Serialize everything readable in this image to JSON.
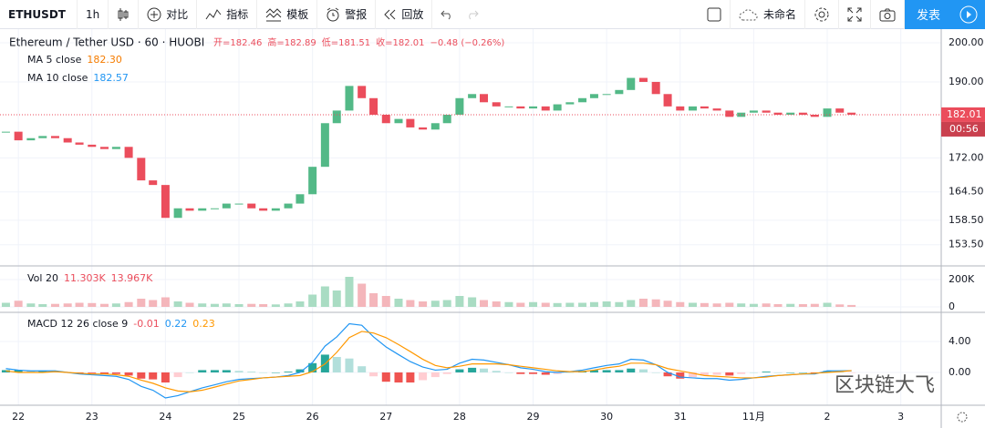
{
  "toolbar": {
    "symbol": "ETHUSDT",
    "interval": "1h",
    "buttons": [
      "对比",
      "指标",
      "模板",
      "警报",
      "回放"
    ],
    "layout_name": "未命名",
    "publish": "发表"
  },
  "chart": {
    "legend": {
      "title": "Ethereum / Tether USD · 60 · HUOBI",
      "ohlc": [
        "开=182.46",
        "高=182.89",
        "低=181.51",
        "收=182.01",
        "−0.48 (−0.26%)"
      ],
      "ma": [
        {
          "name": "MA 5 close",
          "value": "182.30",
          "color": "#f57c00"
        },
        {
          "name": "MA 10 close",
          "value": "182.57",
          "color": "#2196f3"
        }
      ]
    },
    "xlim": [
      21.75,
      34.55
    ],
    "xticks": [
      22,
      23,
      24,
      25,
      26,
      27,
      28,
      29,
      30,
      31,
      {
        "value": 32,
        "label": "11月"
      },
      {
        "value": 33,
        "label": "2"
      },
      {
        "value": 34,
        "label": "3"
      }
    ],
    "x": [
      21.83,
      22,
      22.17,
      22.33,
      22.5,
      22.67,
      22.83,
      23,
      23.17,
      23.33,
      23.5,
      23.67,
      23.83,
      24,
      24.17,
      24.33,
      24.5,
      24.67,
      24.83,
      25,
      25.17,
      25.33,
      25.5,
      25.67,
      25.83,
      26,
      26.17,
      26.33,
      26.5,
      26.67,
      26.83,
      27,
      27.17,
      27.33,
      27.5,
      27.67,
      27.83,
      28,
      28.17,
      28.33,
      28.5,
      28.67,
      28.83,
      29,
      29.17,
      29.33,
      29.5,
      29.67,
      29.83,
      30,
      30.17,
      30.33,
      30.5,
      30.67,
      30.83,
      31,
      31.17,
      31.33,
      31.5,
      31.67,
      31.83,
      32,
      32.17,
      32.33,
      32.5,
      32.67,
      32.83,
      33,
      33.17,
      33.33
    ],
    "price": {
      "type": "candlestick",
      "log": true,
      "ylim": [
        149.3,
        203.6
      ],
      "yticks": [
        {
          "value": 200,
          "label": "200.00"
        },
        {
          "value": 190,
          "label": "190.00"
        },
        {
          "value": 172,
          "label": "172.00"
        },
        {
          "value": 164.5,
          "label": "164.50"
        },
        {
          "value": 158.5,
          "label": "158.50"
        },
        {
          "value": 153.5,
          "label": "153.50"
        }
      ],
      "up_color": "#53b987",
      "down_color": "#eb4d5c",
      "close": [
        178,
        176,
        176.5,
        177,
        176.5,
        175.5,
        175,
        174.5,
        174,
        174.5,
        172,
        167,
        166,
        159,
        161,
        160.5,
        161,
        161,
        162,
        162,
        161,
        160.5,
        161,
        162,
        164,
        170,
        180,
        183,
        189,
        186,
        182,
        180,
        181,
        179,
        178.5,
        180,
        182,
        186,
        187,
        185,
        184,
        184,
        183.5,
        184,
        183,
        184.5,
        185,
        186,
        187,
        187,
        188,
        191,
        190,
        187,
        184,
        183,
        184,
        183.5,
        183,
        181.5,
        182.5,
        183,
        182.5,
        182,
        182.5,
        182,
        181.5,
        183.5,
        182.5,
        182.01
      ],
      "last": 182.01,
      "countdown": "00:56"
    },
    "volume": {
      "type": "bar",
      "legend": [
        "Vol 20",
        "11.303K",
        "13.967K"
      ],
      "ylim": [
        -40000,
        293333
      ],
      "yticks": [
        {
          "value": 200000,
          "label": "200K"
        },
        0
      ],
      "values": [
        30000,
        45000,
        25000,
        20000,
        22000,
        25000,
        30000,
        28000,
        22000,
        25000,
        35000,
        60000,
        50000,
        70000,
        40000,
        30000,
        25000,
        22000,
        25000,
        20000,
        22000,
        20000,
        18000,
        25000,
        40000,
        90000,
        150000,
        120000,
        220000,
        170000,
        100000,
        80000,
        60000,
        50000,
        40000,
        45000,
        50000,
        80000,
        70000,
        50000,
        40000,
        35000,
        30000,
        35000,
        30000,
        28000,
        30000,
        30000,
        35000,
        40000,
        35000,
        50000,
        60000,
        55000,
        45000,
        35000,
        30000,
        28000,
        25000,
        30000,
        25000,
        22000,
        25000,
        20000,
        22000,
        20000,
        22000,
        30000,
        18000,
        13967
      ]
    },
    "macd": {
      "type": "macd",
      "legend": [
        "MACD 12 26 close 9",
        "-0.01",
        "0.22",
        "0.23"
      ],
      "ylim": [
        -4.24,
        7.65
      ],
      "yticks": [
        {
          "value": 4,
          "label": "4.00"
        },
        {
          "value": 0,
          "label": "0.00"
        }
      ],
      "hist": [
        0.3,
        0.3,
        0.2,
        0.2,
        0.1,
        0,
        -0.1,
        -0.1,
        -0.2,
        -0.2,
        -0.4,
        -0.8,
        -0.9,
        -1.3,
        -0.6,
        0,
        0.3,
        0.3,
        0.3,
        0.2,
        0.1,
        0,
        0,
        0.1,
        0.4,
        1.2,
        2.3,
        2,
        1.8,
        0.8,
        -0.5,
        -1.2,
        -1.3,
        -1.3,
        -1,
        -0.6,
        -0.2,
        0.4,
        0.6,
        0.5,
        0.2,
        0,
        -0.2,
        -0.2,
        -0.3,
        -0.2,
        0,
        0.2,
        0.3,
        0.3,
        0.3,
        0.5,
        0.4,
        0,
        -0.5,
        -0.8,
        -0.6,
        -0.4,
        -0.3,
        -0.4,
        -0.2,
        0,
        0.1,
        0,
        0,
        0,
        -0.1,
        0.2,
        0.1,
        -0.01
      ],
      "macd_line": {
        "color": "#2196f3",
        "values": [
          0.5,
          0.3,
          0.2,
          0.2,
          0.2,
          0,
          -0.2,
          -0.3,
          -0.4,
          -0.5,
          -0.9,
          -1.8,
          -2.3,
          -3.3,
          -3,
          -2.5,
          -2,
          -1.6,
          -1.2,
          -0.9,
          -0.8,
          -0.7,
          -0.6,
          -0.4,
          0,
          1.3,
          3.4,
          4.6,
          6.3,
          6.1,
          4.6,
          3.3,
          2.3,
          1.4,
          0.7,
          0.3,
          0.4,
          1.2,
          1.7,
          1.6,
          1.3,
          1,
          0.6,
          0.4,
          0.1,
          0,
          0.1,
          0.3,
          0.6,
          0.9,
          1.1,
          1.7,
          1.6,
          1,
          0,
          -0.6,
          -0.7,
          -0.8,
          -0.8,
          -1,
          -0.9,
          -0.7,
          -0.5,
          -0.4,
          -0.3,
          -0.2,
          -0.2,
          0.2,
          0.2,
          0.22
        ]
      },
      "signal_line": {
        "color": "#ff9800",
        "values": [
          0.2,
          0,
          0,
          0,
          0.1,
          0,
          -0.1,
          -0.2,
          -0.2,
          -0.3,
          -0.5,
          -1,
          -1.4,
          -2,
          -2.4,
          -2.5,
          -2.3,
          -1.9,
          -1.5,
          -1.1,
          -0.9,
          -0.7,
          -0.6,
          -0.5,
          -0.4,
          0.1,
          1.1,
          2.6,
          4.5,
          5.3,
          5.1,
          4.5,
          3.6,
          2.7,
          1.7,
          0.9,
          0.6,
          0.8,
          1.1,
          1.1,
          1.1,
          1,
          0.8,
          0.6,
          0.4,
          0.2,
          0.1,
          0.1,
          0.3,
          0.6,
          0.8,
          1.2,
          1.2,
          1,
          0.5,
          0.2,
          -0.1,
          -0.4,
          -0.5,
          -0.6,
          -0.7,
          -0.7,
          -0.6,
          -0.4,
          -0.3,
          -0.2,
          -0.1,
          0,
          0.1,
          0.23
        ]
      }
    },
    "watermark": "区块链大飞"
  }
}
